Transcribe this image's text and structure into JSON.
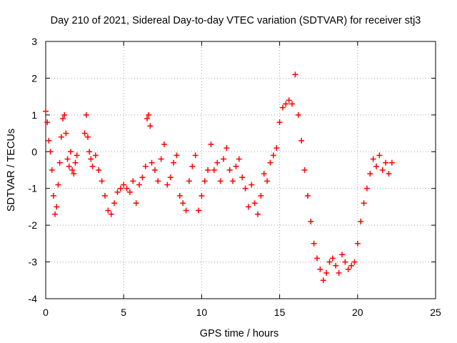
{
  "chart_data": {
    "type": "scatter",
    "title": "Day 210 of 2021, Sidereal Day-to-day VTEC variation (SDTVAR) for receiver stj3",
    "xlabel": "GPS time / hours",
    "ylabel": "SDTVAR / TECUs",
    "xlim": [
      0,
      25
    ],
    "ylim": [
      -4,
      3
    ],
    "xticks": [
      0,
      5,
      10,
      15,
      20,
      25
    ],
    "yticks": [
      -4,
      -3,
      -2,
      -1,
      0,
      1,
      2,
      3
    ],
    "grid": true,
    "marker": "+",
    "series": [
      {
        "name": "SDTVAR",
        "color": "#ff0000",
        "x": [
          0.0,
          0.1,
          0.2,
          0.3,
          0.4,
          0.5,
          0.6,
          0.7,
          0.8,
          0.9,
          1.0,
          1.1,
          1.2,
          1.3,
          1.4,
          1.5,
          1.6,
          1.7,
          1.8,
          1.9,
          2.0,
          2.5,
          2.6,
          2.7,
          2.8,
          2.9,
          3.0,
          3.2,
          3.4,
          3.6,
          3.8,
          4.0,
          4.2,
          4.4,
          4.6,
          4.8,
          5.0,
          5.2,
          5.4,
          5.6,
          5.8,
          6.0,
          6.2,
          6.4,
          6.5,
          6.6,
          6.7,
          6.8,
          7.0,
          7.2,
          7.4,
          7.6,
          7.8,
          8.0,
          8.2,
          8.4,
          8.6,
          8.8,
          9.0,
          9.2,
          9.4,
          9.6,
          9.8,
          10.0,
          10.2,
          10.4,
          10.6,
          10.8,
          11.0,
          11.2,
          11.4,
          11.6,
          11.8,
          12.0,
          12.2,
          12.4,
          12.6,
          12.8,
          13.0,
          13.2,
          13.4,
          13.6,
          13.8,
          14.0,
          14.2,
          14.4,
          14.6,
          14.8,
          15.0,
          15.2,
          15.4,
          15.6,
          15.8,
          16.0,
          16.2,
          16.4,
          16.6,
          16.8,
          17.0,
          17.2,
          17.4,
          17.6,
          17.8,
          18.0,
          18.2,
          18.4,
          18.6,
          18.8,
          19.0,
          19.2,
          19.4,
          19.6,
          19.8,
          20.0,
          20.2,
          20.4,
          20.6,
          20.8,
          21.0,
          21.2,
          21.4,
          21.6,
          21.8,
          22.0,
          22.2
        ],
        "y": [
          1.1,
          0.8,
          0.3,
          0.0,
          -0.5,
          -1.2,
          -1.7,
          -1.5,
          -0.9,
          -0.3,
          0.4,
          0.9,
          1.0,
          0.5,
          -0.2,
          -0.4,
          0.0,
          -0.5,
          -0.6,
          -0.3,
          -0.1,
          0.5,
          1.0,
          0.4,
          0.0,
          -0.2,
          -0.4,
          -0.1,
          -0.5,
          -0.8,
          -1.2,
          -1.6,
          -1.7,
          -1.4,
          -1.1,
          -1.0,
          -0.9,
          -1.0,
          -1.1,
          -0.8,
          -1.4,
          -0.9,
          -0.7,
          -0.4,
          0.9,
          1.0,
          0.7,
          -0.3,
          -0.5,
          -0.8,
          -0.2,
          0.2,
          -0.9,
          -0.7,
          -0.3,
          -0.1,
          -1.2,
          -1.4,
          -1.6,
          -0.8,
          -0.4,
          -0.1,
          -1.6,
          -1.2,
          -0.8,
          -0.5,
          0.2,
          -0.5,
          -0.3,
          -0.8,
          -0.2,
          0.1,
          -0.5,
          -0.8,
          -0.4,
          -0.2,
          -0.7,
          -1.0,
          -1.5,
          -0.9,
          -1.4,
          -1.7,
          -1.2,
          -0.6,
          -0.8,
          -0.3,
          -0.1,
          0.1,
          0.8,
          1.2,
          1.3,
          1.4,
          1.3,
          2.1,
          1.0,
          0.3,
          -0.5,
          -1.2,
          -1.9,
          -2.5,
          -2.9,
          -3.2,
          -3.5,
          -3.3,
          -3.0,
          -2.9,
          -3.1,
          -3.3,
          -2.8,
          -3.0,
          -3.2,
          -3.1,
          -3.0,
          -2.5,
          -1.9,
          -1.4,
          -1.0,
          -0.6,
          -0.2,
          -0.4,
          -0.1,
          -0.5,
          -0.3,
          -0.6,
          -0.3
        ]
      }
    ]
  }
}
